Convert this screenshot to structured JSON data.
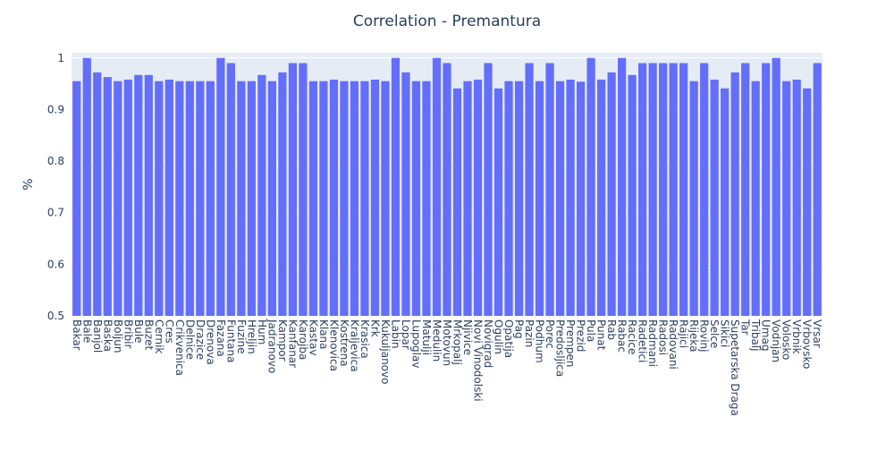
{
  "chart_data": {
    "type": "bar",
    "title": "Correlation - Premantura",
    "y_label": "%",
    "categories": [
      "Bakar",
      "Bale",
      "Banjol",
      "Baska",
      "Boljun",
      "Bribir",
      "Bule",
      "Buzet",
      "Cernik",
      "Cres",
      "Crikvenica",
      "Delnice",
      "Drazice",
      "Drenova",
      "Fazana",
      "Funtana",
      "Fuzine",
      "Hreljin",
      "Hum",
      "Jadranovo",
      "Kampor",
      "Kanfanar",
      "Karojba",
      "Kastav",
      "Klana",
      "Klenovica",
      "Kostrena",
      "Kraljevica",
      "Krasica",
      "Krk",
      "Kukuljanovo",
      "Labin",
      "Lopar",
      "Lupoglav",
      "Matulji",
      "Medulin",
      "Motovun",
      "Mrkopalj",
      "Njivice",
      "Novi Vinodolski",
      "Novigrad",
      "Ogulin",
      "Opatija",
      "Pag",
      "Pazin",
      "Podhum",
      "Porec",
      "Predosljica",
      "Prempen",
      "Prezid",
      "Pula",
      "Punat",
      "Rab",
      "Rabac",
      "Racice",
      "Radetici",
      "Radmani",
      "Radosi",
      "Radovani",
      "Rajici",
      "Rijeka",
      "Rovinj",
      "Selce",
      "Sikici",
      "Supetarska Draga",
      "Tar",
      "Tribalj",
      "Umag",
      "Vodnjan",
      "Volosko",
      "Vrbnik",
      "Vrbovsko",
      "Vrsar"
    ],
    "values": [
      0.955,
      1,
      0.972,
      0.963,
      0.955,
      0.958,
      0.967,
      0.967,
      0.955,
      0.958,
      0.955,
      0.955,
      0.955,
      0.955,
      1,
      0.99,
      0.955,
      0.955,
      0.967,
      0.955,
      0.972,
      0.99,
      0.99,
      0.955,
      0.955,
      0.958,
      0.955,
      0.955,
      0.955,
      0.958,
      0.955,
      1,
      0.972,
      0.955,
      0.955,
      1,
      0.99,
      0.941,
      0.955,
      0.958,
      0.99,
      0.941,
      0.955,
      0.955,
      0.99,
      0.955,
      0.99,
      0.955,
      0.958,
      0.954,
      1,
      0.958,
      0.972,
      1,
      0.967,
      0.99,
      0.99,
      0.99,
      0.99,
      0.99,
      0.955,
      0.99,
      0.958,
      0.941,
      0.972,
      0.99,
      0.955,
      0.99,
      1,
      0.955,
      0.958,
      0.941,
      0.99
    ],
    "color": "#636efa",
    "ylim": [
      0.5,
      1.01
    ],
    "yticks": [
      0.5,
      0.6,
      0.7,
      0.8,
      0.9,
      1
    ],
    "grid": true
  }
}
